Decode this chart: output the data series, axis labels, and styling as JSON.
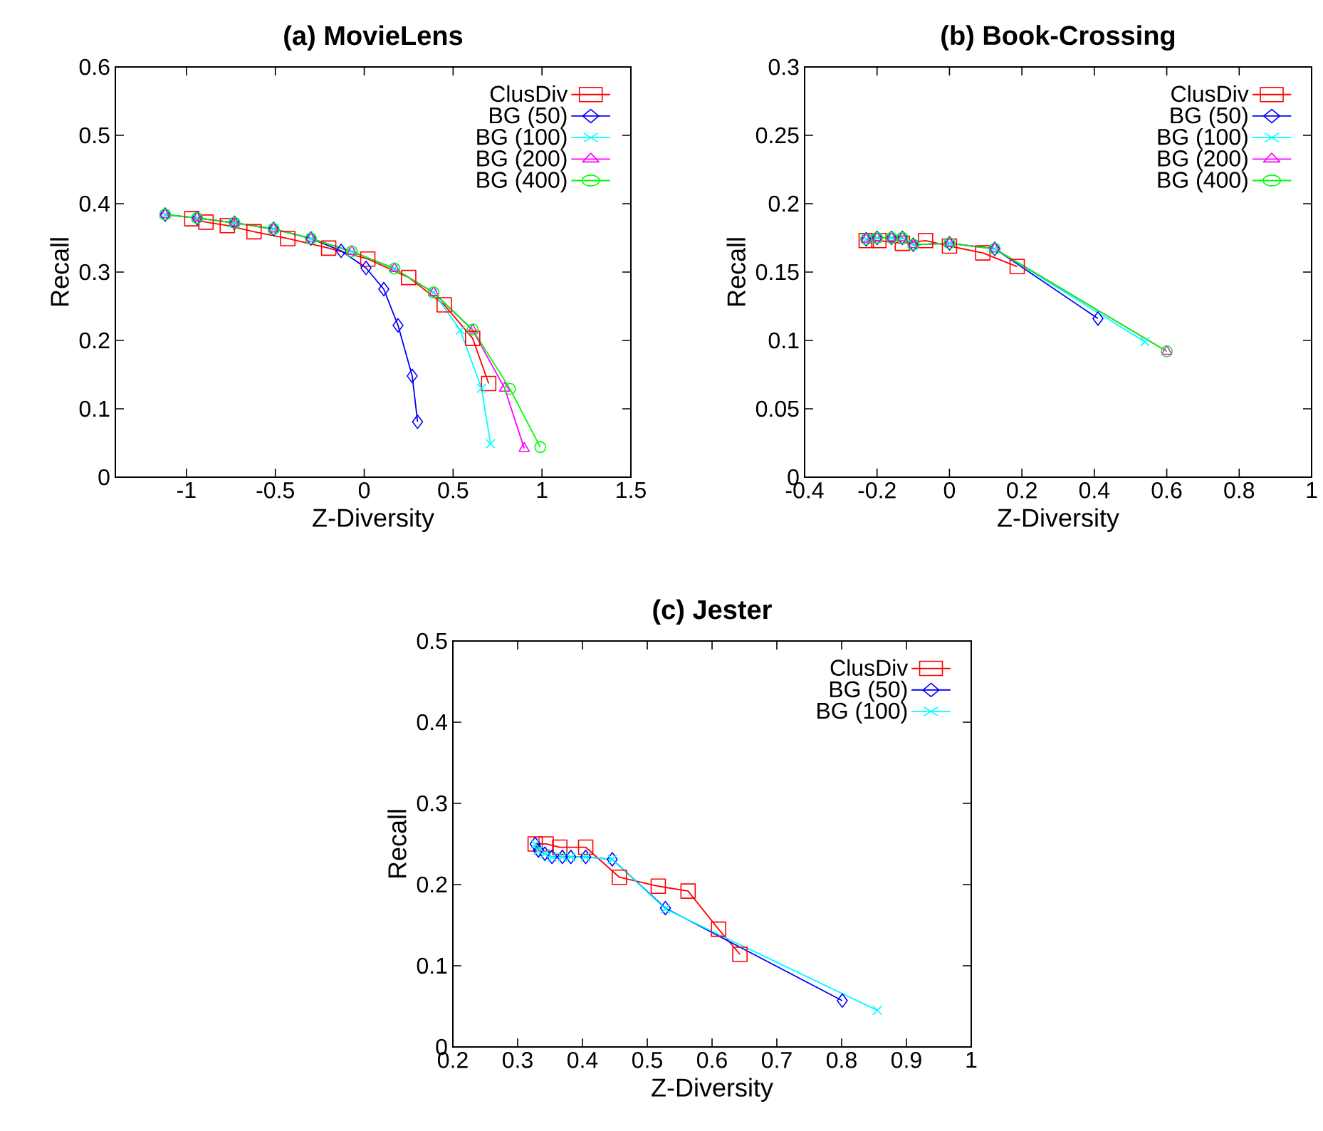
{
  "chart_data": [
    {
      "type": "line",
      "title": "(a) MovieLens",
      "xlabel": "Z-Diversity",
      "ylabel": "Recall",
      "xlim": [
        -1.4,
        1.5
      ],
      "ylim": [
        0,
        0.6
      ],
      "xticks": [
        -1,
        -0.5,
        0,
        0.5,
        1,
        1.5
      ],
      "yticks": [
        0,
        0.1,
        0.2,
        0.3,
        0.4,
        0.5,
        0.6
      ],
      "legend": "top right",
      "grid": false,
      "series": [
        {
          "name": "ClusDiv",
          "color": "#ff0000",
          "marker": "square",
          "x": [
            -0.97,
            -0.89,
            -0.77,
            -0.62,
            -0.43,
            -0.2,
            0.02,
            0.25,
            0.45,
            0.61,
            0.7
          ],
          "values": [
            0.378,
            0.373,
            0.368,
            0.359,
            0.349,
            0.335,
            0.319,
            0.292,
            0.252,
            0.203,
            0.137
          ]
        },
        {
          "name": "BG (50)",
          "color": "#0000ff",
          "marker": "diamond",
          "x": [
            -1.12,
            -0.94,
            -0.73,
            -0.51,
            -0.3,
            -0.13,
            0.01,
            0.11,
            0.19,
            0.27,
            0.3
          ],
          "values": [
            0.384,
            0.379,
            0.372,
            0.363,
            0.349,
            0.331,
            0.306,
            0.275,
            0.222,
            0.148,
            0.081
          ]
        },
        {
          "name": "BG (100)",
          "color": "#00ffff",
          "marker": "cross",
          "x": [
            -1.12,
            -0.94,
            -0.73,
            -0.51,
            -0.3,
            -0.07,
            0.17,
            0.39,
            0.54,
            0.66,
            0.71
          ],
          "values": [
            0.384,
            0.379,
            0.372,
            0.363,
            0.349,
            0.33,
            0.305,
            0.27,
            0.215,
            0.13,
            0.049
          ]
        },
        {
          "name": "BG (200)",
          "color": "#ff00ff",
          "marker": "triangle",
          "x": [
            -1.12,
            -0.94,
            -0.73,
            -0.51,
            -0.3,
            -0.07,
            0.17,
            0.39,
            0.61,
            0.79,
            0.9
          ],
          "values": [
            0.384,
            0.379,
            0.372,
            0.363,
            0.349,
            0.33,
            0.305,
            0.27,
            0.215,
            0.13,
            0.042
          ]
        },
        {
          "name": "BG (400)",
          "color": "#00ff00",
          "marker": "circle",
          "x": [
            -1.12,
            -0.94,
            -0.73,
            -0.51,
            -0.3,
            -0.07,
            0.17,
            0.39,
            0.61,
            0.82,
            0.99
          ],
          "values": [
            0.384,
            0.379,
            0.372,
            0.363,
            0.349,
            0.33,
            0.305,
            0.27,
            0.216,
            0.129,
            0.044
          ]
        }
      ]
    },
    {
      "type": "line",
      "title": "(b) Book-Crossing",
      "xlabel": "Z-Diversity",
      "ylabel": "Recall",
      "xlim": [
        -0.4,
        1
      ],
      "ylim": [
        0,
        0.3
      ],
      "xticks": [
        -0.4,
        -0.2,
        0,
        0.2,
        0.4,
        0.6,
        0.8,
        1
      ],
      "yticks": [
        0,
        0.05,
        0.1,
        0.15,
        0.2,
        0.25,
        0.3
      ],
      "legend": "top right",
      "grid": false,
      "series": [
        {
          "name": "ClusDiv",
          "color": "#ff0000",
          "marker": "square",
          "x": [
            -0.23,
            -0.195,
            -0.13,
            -0.066,
            0,
            0.092,
            0.187
          ],
          "values": [
            0.173,
            0.173,
            0.171,
            0.173,
            0.169,
            0.164,
            0.154
          ]
        },
        {
          "name": "BG (50)",
          "color": "#0000ff",
          "marker": "diamond",
          "x": [
            -0.23,
            -0.2,
            -0.16,
            -0.13,
            -0.1,
            0,
            0.125,
            0.41
          ],
          "values": [
            0.174,
            0.175,
            0.175,
            0.175,
            0.17,
            0.171,
            0.167,
            0.116
          ]
        },
        {
          "name": "BG (100)",
          "color": "#00ffff",
          "marker": "cross",
          "x": [
            -0.23,
            -0.2,
            -0.16,
            -0.13,
            -0.1,
            0,
            0.125,
            0.54
          ],
          "values": [
            0.174,
            0.175,
            0.175,
            0.175,
            0.17,
            0.171,
            0.167,
            0.099
          ]
        },
        {
          "name": "BG (200)",
          "color": "#ff00ff",
          "marker": "triangle",
          "x": [
            -0.23,
            -0.2,
            -0.16,
            -0.13,
            -0.1,
            0,
            0.125,
            0.6
          ],
          "values": [
            0.174,
            0.175,
            0.175,
            0.175,
            0.17,
            0.171,
            0.167,
            0.092
          ]
        },
        {
          "name": "BG (400)",
          "color": "#00ff00",
          "marker": "circle",
          "x": [
            -0.23,
            -0.2,
            -0.16,
            -0.13,
            -0.1,
            0,
            0.125,
            0.6
          ],
          "values": [
            0.174,
            0.175,
            0.175,
            0.175,
            0.17,
            0.171,
            0.167,
            0.092
          ]
        }
      ]
    },
    {
      "type": "line",
      "title": "(c) Jester",
      "xlabel": "Z-Diversity",
      "ylabel": "Recall",
      "xlim": [
        0.2,
        1
      ],
      "ylim": [
        0,
        0.5
      ],
      "xticks": [
        0.2,
        0.3,
        0.4,
        0.5,
        0.6,
        0.7,
        0.8,
        0.9,
        1
      ],
      "yticks": [
        0,
        0.1,
        0.2,
        0.3,
        0.4,
        0.5
      ],
      "legend": "top right",
      "grid": false,
      "series": [
        {
          "name": "ClusDiv",
          "color": "#ff0000",
          "marker": "square",
          "x": [
            0.327,
            0.344,
            0.365,
            0.405,
            0.457,
            0.517,
            0.563,
            0.61,
            0.643
          ],
          "values": [
            0.25,
            0.25,
            0.246,
            0.246,
            0.209,
            0.198,
            0.192,
            0.145,
            0.114
          ]
        },
        {
          "name": "BG (50)",
          "color": "#0000ff",
          "marker": "diamond",
          "x": [
            0.327,
            0.332,
            0.342,
            0.353,
            0.369,
            0.382,
            0.405,
            0.446,
            0.528,
            0.801
          ],
          "values": [
            0.25,
            0.242,
            0.238,
            0.234,
            0.234,
            0.234,
            0.234,
            0.231,
            0.171,
            0.057
          ]
        },
        {
          "name": "BG (100)",
          "color": "#00ffff",
          "marker": "cross",
          "x": [
            0.327,
            0.332,
            0.342,
            0.353,
            0.369,
            0.382,
            0.405,
            0.446,
            0.528,
            0.855
          ],
          "values": [
            0.25,
            0.242,
            0.238,
            0.234,
            0.234,
            0.234,
            0.234,
            0.231,
            0.17,
            0.045
          ]
        }
      ]
    }
  ]
}
